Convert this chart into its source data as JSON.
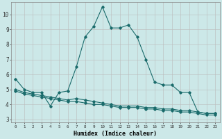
{
  "xlabel": "Humidex (Indice chaleur)",
  "bg_color": "#cce8e8",
  "grid_color": "#bbbbbb",
  "line_color": "#1a6b6b",
  "x_ticks": [
    0,
    1,
    2,
    3,
    4,
    5,
    6,
    7,
    8,
    9,
    10,
    11,
    12,
    13,
    14,
    15,
    16,
    17,
    18,
    19,
    20,
    21,
    22,
    23
  ],
  "ylim": [
    2.8,
    10.8
  ],
  "xlim": [
    -0.5,
    23.5
  ],
  "line1_x": [
    0,
    1,
    2,
    3,
    4,
    5,
    6,
    7,
    8,
    9,
    10,
    11,
    12,
    13,
    14,
    15,
    16,
    17,
    18,
    19,
    20,
    21,
    22,
    23
  ],
  "line1_y": [
    5.7,
    5.0,
    4.8,
    4.8,
    3.9,
    4.8,
    4.9,
    6.5,
    8.5,
    9.2,
    10.5,
    9.1,
    9.1,
    9.3,
    8.5,
    7.0,
    5.5,
    5.3,
    5.3,
    4.8,
    4.8,
    3.5,
    3.4,
    3.4
  ],
  "line2_x": [
    0,
    1,
    2,
    3,
    4,
    5,
    6,
    7,
    8,
    9,
    10,
    11,
    12,
    13,
    14,
    15,
    16,
    17,
    18,
    19,
    20,
    21,
    22,
    23
  ],
  "line2_y": [
    5.0,
    4.8,
    4.7,
    4.6,
    4.5,
    4.4,
    4.3,
    4.4,
    4.3,
    4.2,
    4.1,
    4.0,
    3.9,
    3.9,
    3.9,
    3.8,
    3.8,
    3.7,
    3.7,
    3.6,
    3.6,
    3.5,
    3.4,
    3.4
  ],
  "line3_x": [
    0,
    1,
    2,
    3,
    4,
    5,
    6,
    7,
    8,
    9,
    10,
    11,
    12,
    13,
    14,
    15,
    16,
    17,
    18,
    19,
    20,
    21,
    22,
    23
  ],
  "line3_y": [
    4.9,
    4.7,
    4.6,
    4.5,
    4.4,
    4.3,
    4.2,
    4.2,
    4.1,
    4.0,
    4.0,
    3.9,
    3.8,
    3.8,
    3.8,
    3.7,
    3.7,
    3.6,
    3.6,
    3.5,
    3.5,
    3.4,
    3.3,
    3.3
  ],
  "yticks": [
    3,
    4,
    5,
    6,
    7,
    8,
    9,
    10
  ],
  "ytick_labels": [
    "3",
    "4",
    "5",
    "6",
    "7",
    "8",
    "9",
    "10"
  ]
}
